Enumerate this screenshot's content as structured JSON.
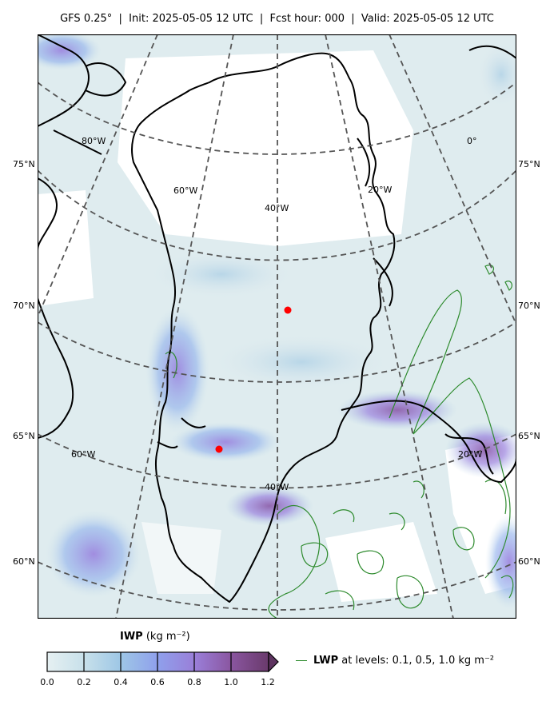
{
  "title": "GFS 0.25$^\\circ$  |  Init: 2025-05-05 12 UTC  |  Fcst hour: 000  |  Valid: 2025-05-05 12 UTC",
  "title_display": "GFS 0.25°  |  Init: 2025-05-05 12 UTC  |  Fcst hour: 000  |  Valid: 2025-05-05 12 UTC",
  "lat_labels": [
    "75°N",
    "70°N",
    "65°N",
    "60°N"
  ],
  "lon_labels": {
    "top_row": [
      "80°W",
      "60°W",
      "40°W",
      "20°W",
      "0°"
    ],
    "bottom_row": [
      "60°W",
      "40°W",
      "20°W"
    ]
  },
  "colorbar": {
    "label_bold": "IWP",
    "label_unit": " (kg m⁻²)",
    "ticks": [
      "0.0",
      "0.2",
      "0.4",
      "0.6",
      "0.8",
      "1.0",
      "1.2"
    ],
    "colors": [
      "#e6f0f2",
      "#afd1e6",
      "#8fb0ec",
      "#9a82de",
      "#8a5aa8",
      "#6e3e70"
    ]
  },
  "legend": {
    "bold": "LWP",
    "text": " at levels: 0.1, 0.5, 1.0  kg m⁻²",
    "color": "#2e8b2e"
  },
  "markers": {
    "color": "#ff0000",
    "count": 2
  }
}
